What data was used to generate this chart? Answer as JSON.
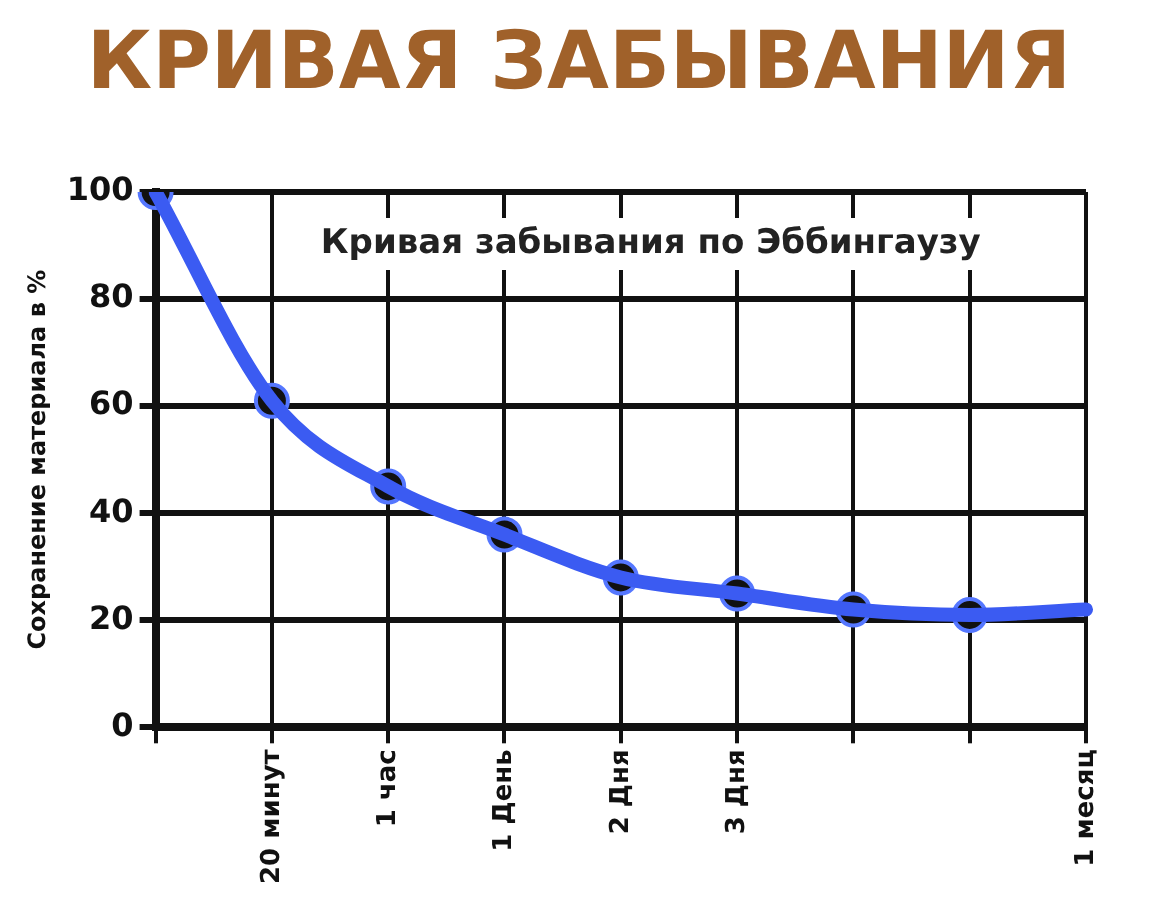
{
  "chart_data": {
    "type": "line",
    "title": "КРИВАЯ ЗАБЫВАНИЯ",
    "subtitle": "Кривая забывания по Эббингаузу",
    "ylabel": "Сохранение материала в %",
    "categories": [
      null,
      "20 минут",
      "1 час",
      "1 День",
      "2 Дня",
      "3 Дня",
      null,
      null,
      "1 месяц"
    ],
    "series": [
      {
        "color": "#3b5bf2",
        "marker": "none",
        "values": [
          100,
          61,
          45,
          36,
          28,
          25,
          22,
          21,
          22
        ]
      },
      {
        "type": "scatter",
        "color": "#111111",
        "marker": "circle",
        "values": [
          100,
          61,
          45,
          36,
          28,
          25,
          22,
          21,
          null
        ]
      }
    ],
    "ylim": [
      0,
      100
    ],
    "yticks": [
      0,
      20,
      40,
      60,
      80,
      100
    ],
    "grid": true,
    "legend": false
  }
}
